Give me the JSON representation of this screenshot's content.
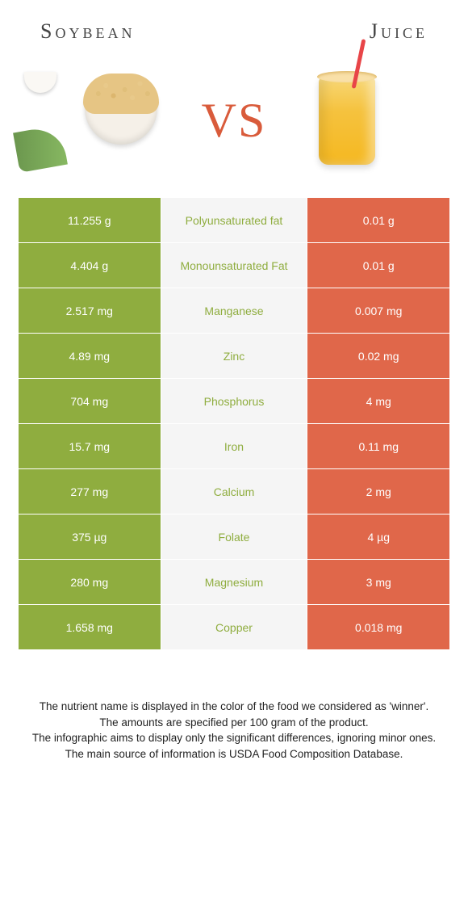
{
  "header": {
    "left_title": "Soybean",
    "right_title": "Juice"
  },
  "hero": {
    "vs_text": "VS"
  },
  "colors": {
    "left_bg": "#8fad3f",
    "right_bg": "#e0674a",
    "mid_bg": "#f5f5f5",
    "mid_green": "#8fad3f",
    "mid_orange": "#d95b3b",
    "cell_text": "#ffffff"
  },
  "table": {
    "rows": [
      {
        "left": "11.255 g",
        "label": "Polyunsaturated fat",
        "winner": "green",
        "right": "0.01 g"
      },
      {
        "left": "4.404 g",
        "label": "Monounsaturated Fat",
        "winner": "green",
        "right": "0.01 g"
      },
      {
        "left": "2.517 mg",
        "label": "Manganese",
        "winner": "green",
        "right": "0.007 mg"
      },
      {
        "left": "4.89 mg",
        "label": "Zinc",
        "winner": "green",
        "right": "0.02 mg"
      },
      {
        "left": "704 mg",
        "label": "Phosphorus",
        "winner": "green",
        "right": "4 mg"
      },
      {
        "left": "15.7 mg",
        "label": "Iron",
        "winner": "green",
        "right": "0.11 mg"
      },
      {
        "left": "277 mg",
        "label": "Calcium",
        "winner": "green",
        "right": "2 mg"
      },
      {
        "left": "375 µg",
        "label": "Folate",
        "winner": "green",
        "right": "4 µg"
      },
      {
        "left": "280 mg",
        "label": "Magnesium",
        "winner": "green",
        "right": "3 mg"
      },
      {
        "left": "1.658 mg",
        "label": "Copper",
        "winner": "green",
        "right": "0.018 mg"
      }
    ]
  },
  "notes": {
    "line1": "The nutrient name is displayed in the color of the food we considered as 'winner'.",
    "line2": "The amounts are specified per 100 gram of the product.",
    "line3": "The infographic aims to display only the significant differences, ignoring minor ones.",
    "line4": "The main source of information is USDA Food Composition Database."
  }
}
